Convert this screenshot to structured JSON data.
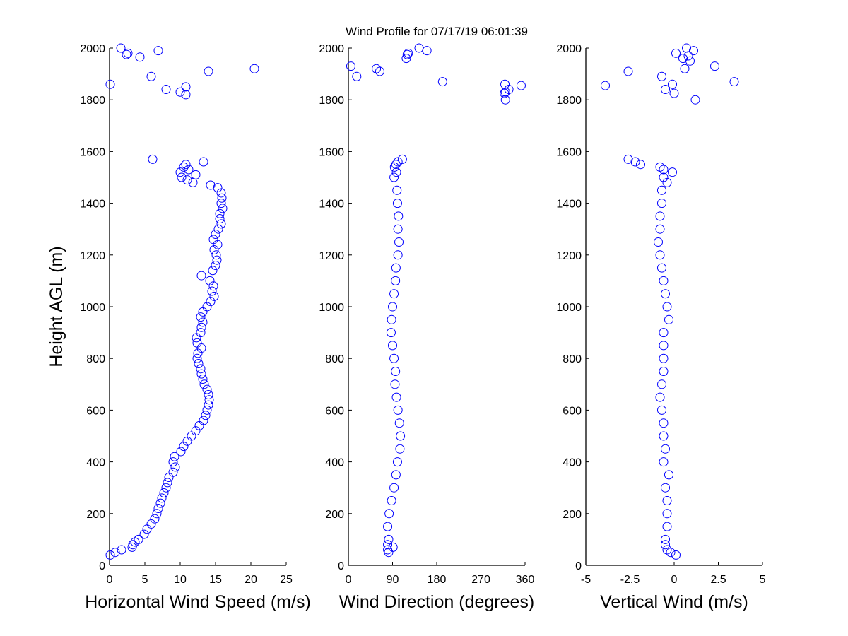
{
  "chart_data": [
    {
      "type": "scatter",
      "title": "Wind Profile for  07/17/19 06:01:39",
      "xlabel": "Horizontal Wind Speed (m/s)",
      "ylabel": "Height AGL (m)",
      "xlim": [
        0,
        25
      ],
      "ylim": [
        0,
        2000
      ],
      "xticks": [
        0,
        5,
        10,
        15,
        20,
        25
      ],
      "yticks": [
        0,
        200,
        400,
        600,
        800,
        1000,
        1200,
        1400,
        1600,
        1800,
        2000
      ],
      "marker": "open-circle",
      "color": "#0000ff",
      "points": [
        [
          0.1,
          40
        ],
        [
          0.8,
          50
        ],
        [
          1.7,
          60
        ],
        [
          3.2,
          70
        ],
        [
          3.3,
          80
        ],
        [
          3.6,
          90
        ],
        [
          4.1,
          100
        ],
        [
          4.9,
          120
        ],
        [
          5.3,
          140
        ],
        [
          5.9,
          160
        ],
        [
          6.4,
          180
        ],
        [
          6.7,
          200
        ],
        [
          6.9,
          220
        ],
        [
          7.2,
          240
        ],
        [
          7.4,
          260
        ],
        [
          7.7,
          280
        ],
        [
          8.0,
          300
        ],
        [
          8.2,
          320
        ],
        [
          8.4,
          340
        ],
        [
          9.0,
          360
        ],
        [
          9.3,
          380
        ],
        [
          9.0,
          400
        ],
        [
          9.2,
          420
        ],
        [
          10.1,
          440
        ],
        [
          10.5,
          460
        ],
        [
          11.0,
          480
        ],
        [
          11.6,
          500
        ],
        [
          12.2,
          520
        ],
        [
          12.7,
          540
        ],
        [
          13.3,
          560
        ],
        [
          13.6,
          580
        ],
        [
          13.8,
          600
        ],
        [
          14.0,
          620
        ],
        [
          14.1,
          640
        ],
        [
          14.0,
          660
        ],
        [
          13.8,
          680
        ],
        [
          13.4,
          700
        ],
        [
          13.2,
          720
        ],
        [
          13.0,
          740
        ],
        [
          12.9,
          760
        ],
        [
          12.6,
          780
        ],
        [
          12.4,
          800
        ],
        [
          12.5,
          820
        ],
        [
          13.0,
          840
        ],
        [
          12.4,
          860
        ],
        [
          12.3,
          880
        ],
        [
          12.9,
          900
        ],
        [
          13.0,
          920
        ],
        [
          13.2,
          940
        ],
        [
          12.9,
          960
        ],
        [
          13.2,
          980
        ],
        [
          13.8,
          1000
        ],
        [
          14.3,
          1020
        ],
        [
          14.8,
          1040
        ],
        [
          14.5,
          1060
        ],
        [
          14.7,
          1080
        ],
        [
          14.2,
          1100
        ],
        [
          13.0,
          1120
        ],
        [
          14.6,
          1140
        ],
        [
          15.0,
          1160
        ],
        [
          15.2,
          1180
        ],
        [
          15.1,
          1200
        ],
        [
          14.8,
          1220
        ],
        [
          15.3,
          1240
        ],
        [
          14.7,
          1260
        ],
        [
          15.0,
          1280
        ],
        [
          15.4,
          1300
        ],
        [
          15.8,
          1320
        ],
        [
          15.6,
          1340
        ],
        [
          15.6,
          1360
        ],
        [
          16.0,
          1380
        ],
        [
          15.8,
          1400
        ],
        [
          15.9,
          1420
        ],
        [
          15.8,
          1440
        ],
        [
          15.3,
          1460
        ],
        [
          14.3,
          1470
        ],
        [
          11.8,
          1480
        ],
        [
          11.0,
          1490
        ],
        [
          10.2,
          1500
        ],
        [
          12.2,
          1510
        ],
        [
          10.0,
          1520
        ],
        [
          11.2,
          1530
        ],
        [
          10.5,
          1540
        ],
        [
          10.8,
          1550
        ],
        [
          13.3,
          1560
        ],
        [
          6.1,
          1570
        ],
        [
          0.1,
          1860
        ],
        [
          1.6,
          2000
        ],
        [
          2.4,
          1975
        ],
        [
          2.6,
          1980
        ],
        [
          4.3,
          1965
        ],
        [
          6.9,
          1990
        ],
        [
          5.9,
          1890
        ],
        [
          8.0,
          1840
        ],
        [
          10.0,
          1830
        ],
        [
          10.8,
          1850
        ],
        [
          10.8,
          1820
        ],
        [
          14.0,
          1910
        ],
        [
          20.5,
          1920
        ]
      ]
    },
    {
      "type": "scatter",
      "xlabel": "Wind Direction (degrees)",
      "xlim": [
        0,
        360
      ],
      "ylim": [
        0,
        2000
      ],
      "xticks": [
        0,
        90,
        180,
        270,
        360
      ],
      "yticks": [
        0,
        200,
        400,
        600,
        800,
        1000,
        1200,
        1400,
        1600,
        1800,
        2000
      ],
      "marker": "open-circle",
      "color": "#0000ff",
      "points": [
        [
          82,
          50
        ],
        [
          80,
          60
        ],
        [
          91,
          70
        ],
        [
          80,
          80
        ],
        [
          82,
          100
        ],
        [
          80,
          150
        ],
        [
          83,
          200
        ],
        [
          88,
          250
        ],
        [
          93,
          300
        ],
        [
          97,
          350
        ],
        [
          100,
          400
        ],
        [
          105,
          450
        ],
        [
          106,
          500
        ],
        [
          104,
          550
        ],
        [
          101,
          600
        ],
        [
          98,
          650
        ],
        [
          95,
          700
        ],
        [
          96,
          750
        ],
        [
          93,
          800
        ],
        [
          90,
          850
        ],
        [
          87,
          900
        ],
        [
          88,
          950
        ],
        [
          90,
          1000
        ],
        [
          93,
          1050
        ],
        [
          96,
          1100
        ],
        [
          97,
          1150
        ],
        [
          101,
          1200
        ],
        [
          103,
          1250
        ],
        [
          101,
          1300
        ],
        [
          102,
          1350
        ],
        [
          100,
          1400
        ],
        [
          99,
          1450
        ],
        [
          93,
          1500
        ],
        [
          98,
          1520
        ],
        [
          94,
          1540
        ],
        [
          97,
          1550
        ],
        [
          101,
          1560
        ],
        [
          110,
          1570
        ],
        [
          5,
          1930
        ],
        [
          17,
          1890
        ],
        [
          57,
          1920
        ],
        [
          64,
          1910
        ],
        [
          118,
          1960
        ],
        [
          120,
          1975
        ],
        [
          122,
          1980
        ],
        [
          144,
          2000
        ],
        [
          160,
          1990
        ],
        [
          192,
          1870
        ],
        [
          319,
          1860
        ],
        [
          318,
          1825
        ],
        [
          320,
          1800
        ],
        [
          320,
          1830
        ],
        [
          327,
          1840
        ],
        [
          352,
          1855
        ]
      ]
    },
    {
      "type": "scatter",
      "xlabel": "Vertical Wind (m/s)",
      "xlim": [
        -5,
        5
      ],
      "ylim": [
        0,
        2000
      ],
      "xticks": [
        -5,
        -2.5,
        0,
        2.5,
        5
      ],
      "yticks": [
        0,
        200,
        400,
        600,
        800,
        1000,
        1200,
        1400,
        1600,
        1800,
        2000
      ],
      "marker": "open-circle",
      "color": "#0000ff",
      "points": [
        [
          0.1,
          40
        ],
        [
          -0.2,
          50
        ],
        [
          -0.4,
          60
        ],
        [
          -0.5,
          80
        ],
        [
          -0.5,
          100
        ],
        [
          -0.4,
          150
        ],
        [
          -0.4,
          200
        ],
        [
          -0.4,
          250
        ],
        [
          -0.5,
          300
        ],
        [
          -0.3,
          350
        ],
        [
          -0.6,
          400
        ],
        [
          -0.5,
          450
        ],
        [
          -0.6,
          500
        ],
        [
          -0.6,
          550
        ],
        [
          -0.7,
          600
        ],
        [
          -0.8,
          650
        ],
        [
          -0.7,
          700
        ],
        [
          -0.6,
          750
        ],
        [
          -0.6,
          800
        ],
        [
          -0.6,
          850
        ],
        [
          -0.6,
          900
        ],
        [
          -0.3,
          950
        ],
        [
          -0.4,
          1000
        ],
        [
          -0.5,
          1050
        ],
        [
          -0.6,
          1100
        ],
        [
          -0.7,
          1150
        ],
        [
          -0.8,
          1200
        ],
        [
          -0.9,
          1250
        ],
        [
          -0.8,
          1300
        ],
        [
          -0.8,
          1350
        ],
        [
          -0.7,
          1400
        ],
        [
          -0.7,
          1450
        ],
        [
          -0.4,
          1480
        ],
        [
          -0.6,
          1500
        ],
        [
          -0.1,
          1520
        ],
        [
          -0.6,
          1530
        ],
        [
          -0.8,
          1540
        ],
        [
          -1.9,
          1550
        ],
        [
          -2.2,
          1560
        ],
        [
          -2.6,
          1570
        ],
        [
          -3.9,
          1855
        ],
        [
          -2.6,
          1910
        ],
        [
          -0.7,
          1890
        ],
        [
          -0.5,
          1840
        ],
        [
          -0.1,
          1860
        ],
        [
          0,
          1825
        ],
        [
          1.2,
          1800
        ],
        [
          0.1,
          1980
        ],
        [
          0.5,
          1960
        ],
        [
          0.6,
          1920
        ],
        [
          0.7,
          2000
        ],
        [
          0.8,
          1970
        ],
        [
          0.9,
          1950
        ],
        [
          1.1,
          1990
        ],
        [
          2.3,
          1930
        ],
        [
          3.4,
          1870
        ]
      ]
    }
  ]
}
